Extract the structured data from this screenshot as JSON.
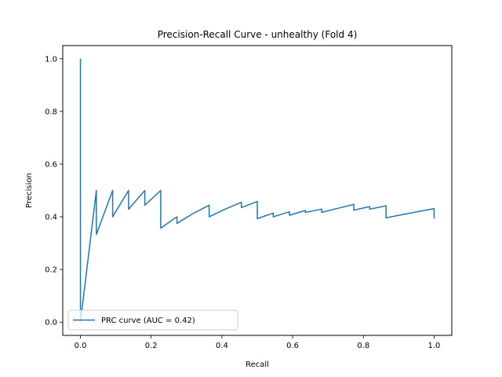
{
  "chart_data": {
    "type": "line",
    "title": "Precision-Recall Curve - unhealthy (Fold 4)",
    "xlabel": "Recall",
    "ylabel": "Precision",
    "xlim": [
      -0.05,
      1.05
    ],
    "ylim": [
      -0.05,
      1.05
    ],
    "xticks": [
      0.0,
      0.2,
      0.4,
      0.6,
      0.8,
      1.0
    ],
    "yticks": [
      0.0,
      0.2,
      0.4,
      0.6,
      0.8,
      1.0
    ],
    "xtick_labels": [
      "0.0",
      "0.2",
      "0.4",
      "0.6",
      "0.8",
      "1.0"
    ],
    "ytick_labels": [
      "0.0",
      "0.2",
      "0.4",
      "0.6",
      "0.8",
      "1.0"
    ],
    "grid": false,
    "legend_position": "lower-left",
    "series": [
      {
        "name": "PRC curve (AUC = 0.42)",
        "color": "#1f77b4",
        "x": [
          0.0,
          0.0,
          0.0045,
          0.045,
          0.045,
          0.091,
          0.091,
          0.136,
          0.136,
          0.182,
          0.182,
          0.227,
          0.227,
          0.273,
          0.273,
          0.318,
          0.364,
          0.364,
          0.409,
          0.455,
          0.455,
          0.5,
          0.5,
          0.545,
          0.545,
          0.591,
          0.591,
          0.636,
          0.636,
          0.682,
          0.682,
          0.727,
          0.773,
          0.773,
          0.818,
          0.818,
          0.864,
          0.864,
          0.909,
          0.955,
          1.0,
          1.0
        ],
        "y": [
          1.0,
          0.0,
          0.05,
          0.5,
          0.333,
          0.5,
          0.4,
          0.5,
          0.429,
          0.5,
          0.444,
          0.5,
          0.357,
          0.4,
          0.375,
          0.412,
          0.444,
          0.4,
          0.429,
          0.455,
          0.435,
          0.458,
          0.393,
          0.414,
          0.4,
          0.419,
          0.406,
          0.424,
          0.417,
          0.429,
          0.417,
          0.432,
          0.447,
          0.425,
          0.439,
          0.429,
          0.442,
          0.396,
          0.408,
          0.42,
          0.431,
          0.393
        ]
      }
    ]
  }
}
